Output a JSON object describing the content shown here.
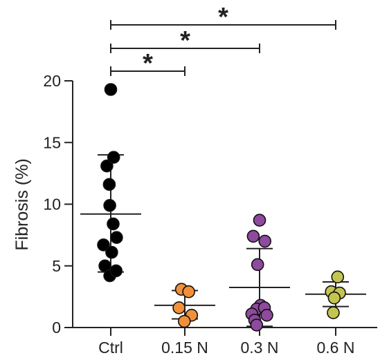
{
  "chart_data": {
    "type": "scatter",
    "title": "",
    "xlabel": "",
    "ylabel": "Fibrosis (%)",
    "ylim": [
      0,
      20
    ],
    "yticks": [
      0,
      5,
      10,
      15,
      20
    ],
    "grid": false,
    "legend": "none",
    "categories": [
      "Ctrl",
      "0.15 N",
      "0.3 N",
      "0.6 N"
    ],
    "series": [
      {
        "category": "Ctrl",
        "color": "#000000",
        "points": [
          {
            "x": 0.0,
            "y": 19.3
          },
          {
            "x": -0.08,
            "y": 13.1
          },
          {
            "x": 0.06,
            "y": 13.8
          },
          {
            "x": -0.03,
            "y": 11.6
          },
          {
            "x": -0.02,
            "y": 9.9
          },
          {
            "x": 0.05,
            "y": 8.4
          },
          {
            "x": -0.15,
            "y": 6.7
          },
          {
            "x": 0.12,
            "y": 7.3
          },
          {
            "x": 0.02,
            "y": 6.1
          },
          {
            "x": -0.12,
            "y": 5.0
          },
          {
            "x": -0.02,
            "y": 4.2
          },
          {
            "x": 0.11,
            "y": 4.6
          }
        ],
        "mean": 9.2,
        "sd_low": 4.5,
        "sd_high": 14.0
      },
      {
        "category": "0.15 N",
        "color": "#f0913a",
        "points": [
          {
            "x": -0.07,
            "y": 3.1
          },
          {
            "x": 0.08,
            "y": 2.9
          },
          {
            "x": -0.12,
            "y": 1.6
          },
          {
            "x": 0.14,
            "y": 1.0
          },
          {
            "x": -0.01,
            "y": 0.5
          }
        ],
        "mean": 1.8,
        "sd_low": 0.7,
        "sd_high": 3.0
      },
      {
        "category": "0.3 N",
        "color": "#8e4a9e",
        "points": [
          {
            "x": 0.0,
            "y": 8.7
          },
          {
            "x": -0.13,
            "y": 7.4
          },
          {
            "x": 0.11,
            "y": 7.0
          },
          {
            "x": -0.04,
            "y": 5.1
          },
          {
            "x": 0.02,
            "y": 1.8
          },
          {
            "x": -0.06,
            "y": 1.5
          },
          {
            "x": 0.1,
            "y": 1.6
          },
          {
            "x": -0.16,
            "y": 1.1
          },
          {
            "x": 0.15,
            "y": 1.0
          },
          {
            "x": -0.1,
            "y": 0.6
          },
          {
            "x": -0.06,
            "y": 0.2
          }
        ],
        "mean": 3.25,
        "sd_low": 0.1,
        "sd_high": 6.4
      },
      {
        "category": "0.6 N",
        "color": "#c4c550",
        "points": [
          {
            "x": 0.04,
            "y": 4.1
          },
          {
            "x": -0.09,
            "y": 2.9
          },
          {
            "x": 0.08,
            "y": 2.8
          },
          {
            "x": -0.03,
            "y": 2.4
          },
          {
            "x": -0.05,
            "y": 1.2
          }
        ],
        "mean": 2.7,
        "sd_low": 1.7,
        "sd_high": 3.7
      }
    ],
    "significance": [
      {
        "from": "Ctrl",
        "to": "0.15 N",
        "label": "*"
      },
      {
        "from": "Ctrl",
        "to": "0.3 N",
        "label": "*"
      },
      {
        "from": "Ctrl",
        "to": "0.6 N",
        "label": "*"
      }
    ]
  }
}
